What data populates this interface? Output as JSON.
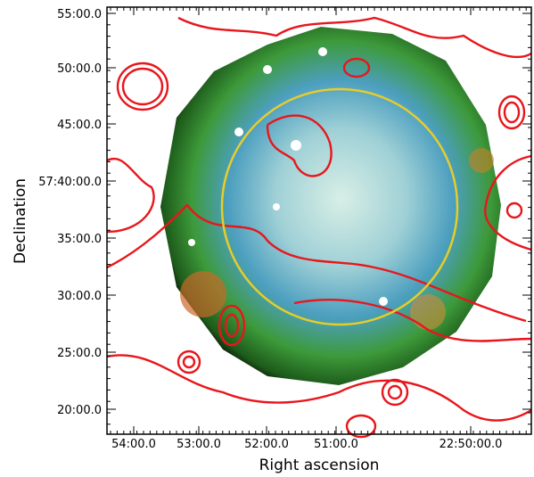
{
  "x_axis": {
    "label": "Right ascension",
    "ticks": [
      "54:00.0",
      "53:00.0",
      "52:00.0",
      "51:00.0",
      "22:50:00.0"
    ]
  },
  "y_axis": {
    "label": "Declination",
    "ticks": [
      "55:00.0",
      "50:00.0",
      "45:00.0",
      "57:40:00.0",
      "35:00.0",
      "30:00.0",
      "25:00.0",
      "20:00.0"
    ]
  }
}
